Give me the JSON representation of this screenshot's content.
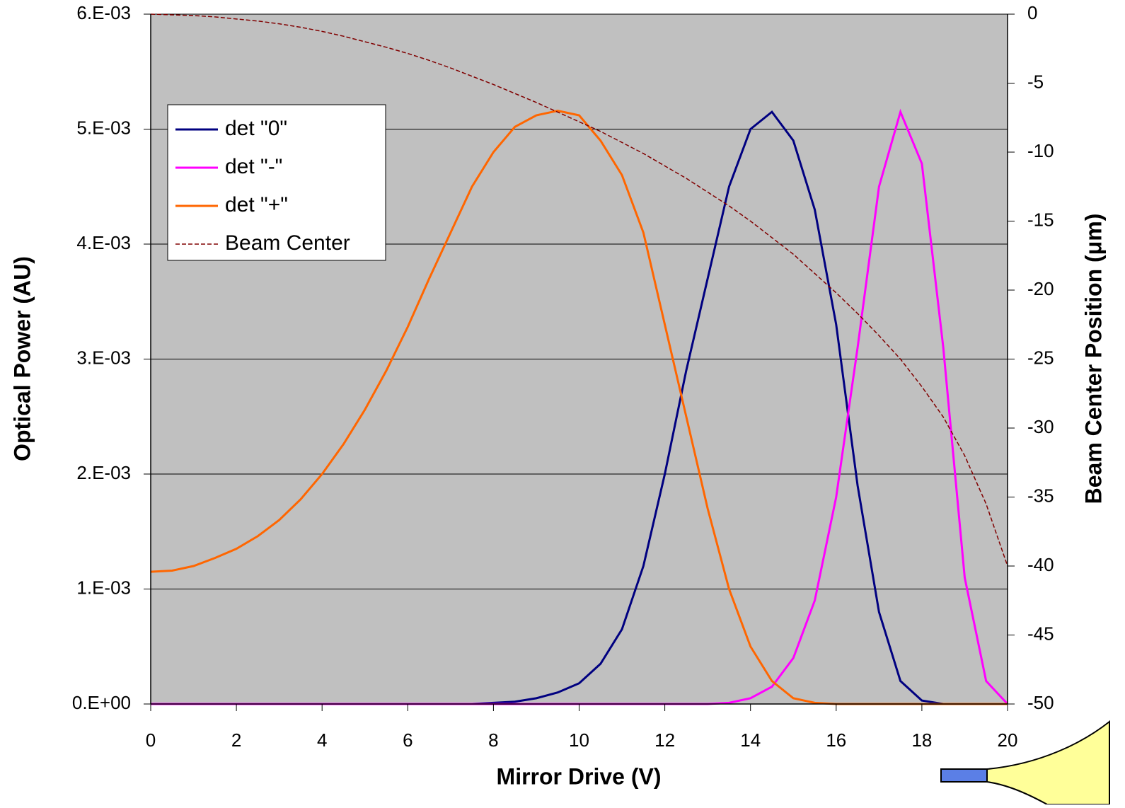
{
  "chart_data": {
    "type": "line",
    "x_label": "Mirror Drive (V)",
    "y_label": "Optical Power (AU)",
    "y2_label": "Beam Center Position (μm)",
    "x": [
      0,
      0.5,
      1,
      1.5,
      2,
      2.5,
      3,
      3.5,
      4,
      4.5,
      5,
      5.5,
      6,
      6.5,
      7,
      7.5,
      8,
      8.5,
      9,
      9.5,
      10,
      10.5,
      11,
      11.5,
      12,
      12.5,
      13,
      13.5,
      14,
      14.5,
      15,
      15.5,
      16,
      16.5,
      17,
      17.5,
      18,
      18.5,
      19,
      19.5,
      20
    ],
    "xlim": [
      0,
      20
    ],
    "xticks": [
      0,
      2,
      4,
      6,
      8,
      10,
      12,
      14,
      16,
      18,
      20
    ],
    "ylim": [
      0,
      0.006
    ],
    "yticks": [
      {
        "value": 0,
        "label": "0.E+00"
      },
      {
        "value": 0.001,
        "label": "1.E-03"
      },
      {
        "value": 0.002,
        "label": "2.E-03"
      },
      {
        "value": 0.003,
        "label": "3.E-03"
      },
      {
        "value": 0.004,
        "label": "4.E-03"
      },
      {
        "value": 0.005,
        "label": "5.E-03"
      },
      {
        "value": 0.006,
        "label": "6.E-03"
      }
    ],
    "y2lim": [
      -50,
      0
    ],
    "y2ticks": [
      -50,
      -45,
      -40,
      -35,
      -30,
      -25,
      -20,
      -15,
      -10,
      -5,
      0
    ],
    "grid": true,
    "legend": "upper left",
    "series": [
      {
        "name": "det \"0\"",
        "color": "#000080",
        "values": [
          0,
          0,
          0,
          0,
          0,
          0,
          0,
          0,
          0,
          0,
          0,
          0,
          0,
          0,
          0,
          0,
          1e-05,
          2e-05,
          5e-05,
          0.0001,
          0.00018,
          0.00035,
          0.00065,
          0.0012,
          0.002,
          0.0029,
          0.0037,
          0.0045,
          0.005,
          0.00515,
          0.0049,
          0.0043,
          0.0033,
          0.0019,
          0.0008,
          0.0002,
          3e-05,
          0,
          0,
          0,
          0
        ]
      },
      {
        "name": "det \"-\"",
        "color": "#ff00ff",
        "values": [
          0,
          0,
          0,
          0,
          0,
          0,
          0,
          0,
          0,
          0,
          0,
          0,
          0,
          0,
          0,
          0,
          0,
          0,
          0,
          0,
          0,
          0,
          0,
          0,
          0,
          0,
          0,
          1e-05,
          5e-05,
          0.00015,
          0.0004,
          0.0009,
          0.0018,
          0.0031,
          0.0045,
          0.00515,
          0.0047,
          0.0031,
          0.0011,
          0.0002,
          0
        ]
      },
      {
        "name": "det \"+\"",
        "color": "#ff6600",
        "values": [
          0.00115,
          0.00116,
          0.0012,
          0.00127,
          0.00135,
          0.00146,
          0.0016,
          0.00178,
          0.002,
          0.00226,
          0.00256,
          0.0029,
          0.00328,
          0.0037,
          0.0041,
          0.0045,
          0.0048,
          0.00502,
          0.00512,
          0.00516,
          0.00512,
          0.0049,
          0.0046,
          0.0041,
          0.0033,
          0.0025,
          0.0017,
          0.001,
          0.0005,
          0.0002,
          5e-05,
          1e-05,
          0,
          0,
          0,
          0,
          0,
          0,
          0,
          0,
          0
        ]
      },
      {
        "name": "Beam Center",
        "color": "#800000",
        "axis": "y2",
        "dashed": true,
        "values": [
          0,
          -0.05,
          -0.1,
          -0.2,
          -0.35,
          -0.5,
          -0.7,
          -0.95,
          -1.25,
          -1.6,
          -2,
          -2.4,
          -2.85,
          -3.35,
          -3.9,
          -4.5,
          -5.1,
          -5.75,
          -6.4,
          -7.1,
          -7.8,
          -8.5,
          -9.3,
          -10.1,
          -11,
          -11.9,
          -12.9,
          -13.9,
          -15,
          -16.2,
          -17.4,
          -18.8,
          -20.2,
          -21.7,
          -23.3,
          -25,
          -27,
          -29.2,
          -32,
          -35.5,
          -40
        ]
      }
    ]
  }
}
